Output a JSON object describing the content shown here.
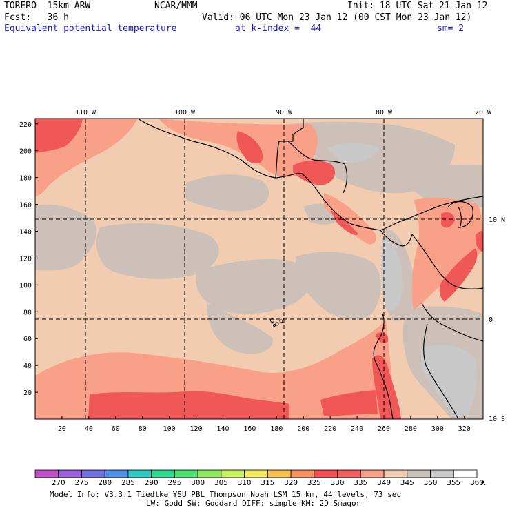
{
  "header": {
    "model": "TORERO  15km ARW",
    "center": "NCAR/MMM",
    "init": "Init: 18 UTC Sat 21 Jan 12",
    "fcst": "Fcst:   36 h",
    "valid": "Valid: 06 UTC Mon 23 Jan 12 (00 CST Mon 23 Jan 12)",
    "field": "Equivalent potential temperature",
    "level": "at k-index =  44",
    "smooth": "sm= 2"
  },
  "map": {
    "top_lon_labels": [
      "110 W",
      "100 W",
      "90 W",
      "80 W",
      "70 W"
    ],
    "right_lat_labels": [
      "10 N",
      "0",
      "10 S"
    ],
    "left_y_ticks": [
      "220",
      "200",
      "180",
      "160",
      "140",
      "120",
      "100",
      "80",
      "60",
      "40",
      "20"
    ],
    "bottom_x_ticks": [
      "20",
      "40",
      "60",
      "80",
      "100",
      "120",
      "140",
      "160",
      "180",
      "200",
      "220",
      "240",
      "260",
      "280",
      "300",
      "320"
    ]
  },
  "colorbar": {
    "labels": [
      "270",
      "275",
      "280",
      "285",
      "290",
      "295",
      "300",
      "305",
      "310",
      "315",
      "320",
      "325",
      "330",
      "335",
      "340",
      "345",
      "350",
      "355",
      "360"
    ],
    "unit": "K",
    "colors": [
      "#c050c8",
      "#9a60d8",
      "#7070e0",
      "#5090e8",
      "#30c8c0",
      "#30d890",
      "#50e070",
      "#90e860",
      "#c8f060",
      "#f0e860",
      "#f8c050",
      "#f89060",
      "#f05050",
      "#f06060",
      "#f8a088",
      "#f2ccb0",
      "#ccc0b8",
      "#c8c8c8",
      "#ffffff"
    ]
  },
  "footer": {
    "line1": "Model Info: V3.3.1   Tiedtke YSU PBL  Thompson    Noah LSM  15 km,   44 levels,   73 sec",
    "line2": "LW: Godd SW: Goddard DIFF: simple KM: 2D Smagor"
  }
}
